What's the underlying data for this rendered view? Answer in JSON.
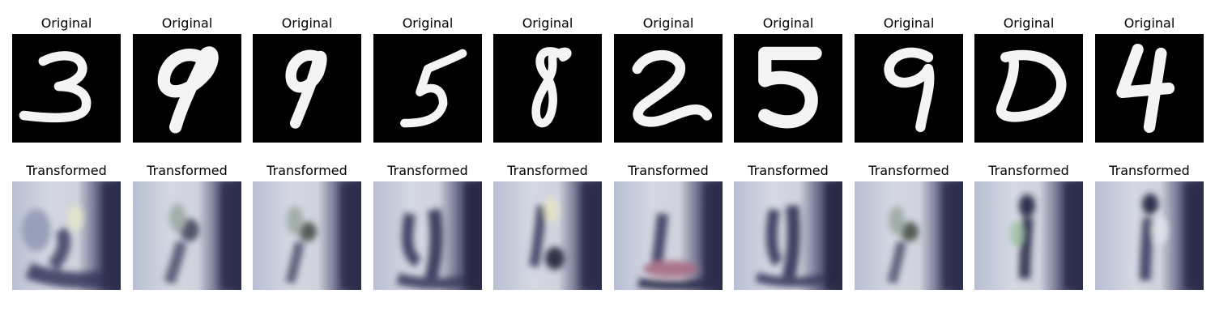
{
  "labels": {
    "original": "Original",
    "transformed": "Transformed"
  },
  "images": [
    {
      "original_digit": "3",
      "transformed_desc": "noisy-texture"
    },
    {
      "original_digit": "9",
      "transformed_desc": "noisy-texture"
    },
    {
      "original_digit": "9",
      "transformed_desc": "noisy-texture"
    },
    {
      "original_digit": "5",
      "transformed_desc": "noisy-texture"
    },
    {
      "original_digit": "8",
      "transformed_desc": "noisy-texture"
    },
    {
      "original_digit": "2",
      "transformed_desc": "noisy-texture"
    },
    {
      "original_digit": "5",
      "transformed_desc": "noisy-texture"
    },
    {
      "original_digit": "9",
      "transformed_desc": "noisy-texture"
    },
    {
      "original_digit": "0",
      "transformed_desc": "noisy-texture"
    },
    {
      "original_digit": "4",
      "transformed_desc": "noisy-texture"
    }
  ],
  "colors": {
    "original_background": "#000000",
    "digit_stroke": "#f4f4f4",
    "transformed_light": "#d8dbe6",
    "transformed_dark": "#2a2c45"
  }
}
